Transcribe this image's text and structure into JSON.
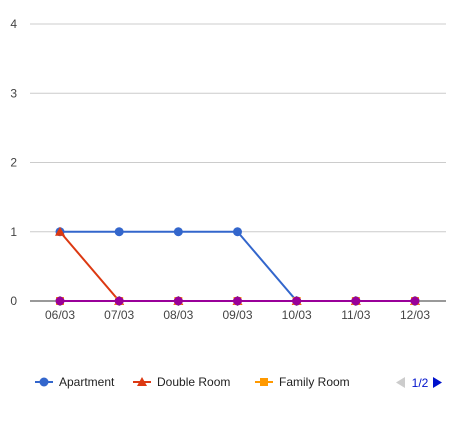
{
  "chart_data": {
    "type": "line",
    "categories": [
      "06/03",
      "07/03",
      "08/03",
      "09/03",
      "10/03",
      "11/03",
      "12/03"
    ],
    "series": [
      {
        "name": "Apartment",
        "values": [
          1,
          1,
          1,
          1,
          0,
          0,
          0
        ],
        "color": "#3366cc",
        "marker": "circle"
      },
      {
        "name": "Double Room",
        "values": [
          1,
          0,
          0,
          0,
          0,
          0,
          0
        ],
        "color": "#dc3912",
        "marker": "triangle"
      },
      {
        "name": "Family Room",
        "values": [
          0,
          0,
          0,
          0,
          0,
          0,
          0
        ],
        "color": "#ff9900",
        "marker": "square"
      },
      {
        "name": "",
        "values": [
          0,
          0,
          0,
          0,
          0,
          0,
          0
        ],
        "color": "#109618",
        "marker": "diamond"
      },
      {
        "name": "",
        "values": [
          0,
          0,
          0,
          0,
          0,
          0,
          0
        ],
        "color": "#990099",
        "marker": "circle"
      }
    ],
    "yticks": [
      0,
      1,
      2,
      3,
      4
    ],
    "ylim": [
      0,
      4
    ],
    "title": "",
    "xlabel": "",
    "ylabel": "",
    "grid": true,
    "legend_position": "bottom"
  },
  "legend": {
    "visible_count": 3,
    "page_label": "1/2"
  },
  "colors": {
    "gridline": "#cccccc",
    "baseline": "#333333",
    "pager_active": "#0011cc",
    "pager_inactive": "#cccccc"
  }
}
